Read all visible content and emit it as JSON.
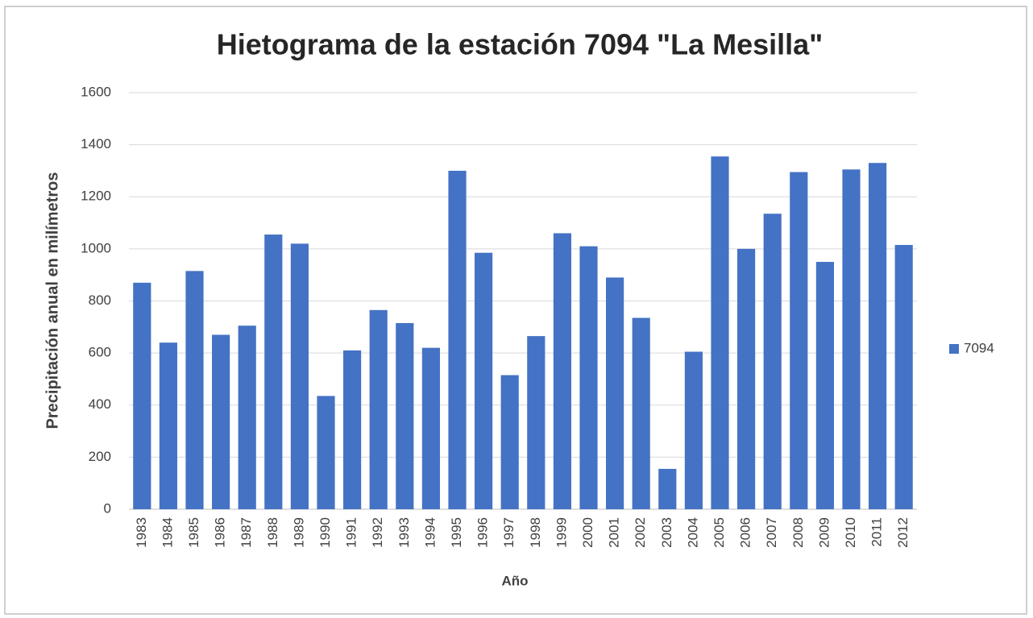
{
  "chart_data": {
    "type": "bar",
    "title": "Hietograma de la estación 7094 \"La Mesilla\"",
    "x_label": "Año",
    "y_label": "Precipitación anual en milímetros",
    "categories": [
      "1983",
      "1984",
      "1985",
      "1986",
      "1987",
      "1988",
      "1989",
      "1990",
      "1991",
      "1992",
      "1993",
      "1994",
      "1995",
      "1996",
      "1997",
      "1998",
      "1999",
      "2000",
      "2001",
      "2002",
      "2003",
      "2004",
      "2005",
      "2006",
      "2007",
      "2008",
      "2009",
      "2010",
      "2011",
      "2012"
    ],
    "series": [
      {
        "name": "7094",
        "color": "#4472c4",
        "values": [
          870,
          640,
          915,
          670,
          705,
          1055,
          1020,
          435,
          610,
          765,
          715,
          620,
          1300,
          985,
          515,
          665,
          1060,
          1010,
          890,
          735,
          155,
          605,
          1355,
          1000,
          1135,
          1295,
          950,
          1305,
          1330,
          1015
        ]
      }
    ],
    "ylim": [
      0,
      1600
    ],
    "yticks": [
      0,
      200,
      400,
      600,
      800,
      1000,
      1200,
      1400,
      1600
    ],
    "grid": true,
    "legend": "right"
  }
}
